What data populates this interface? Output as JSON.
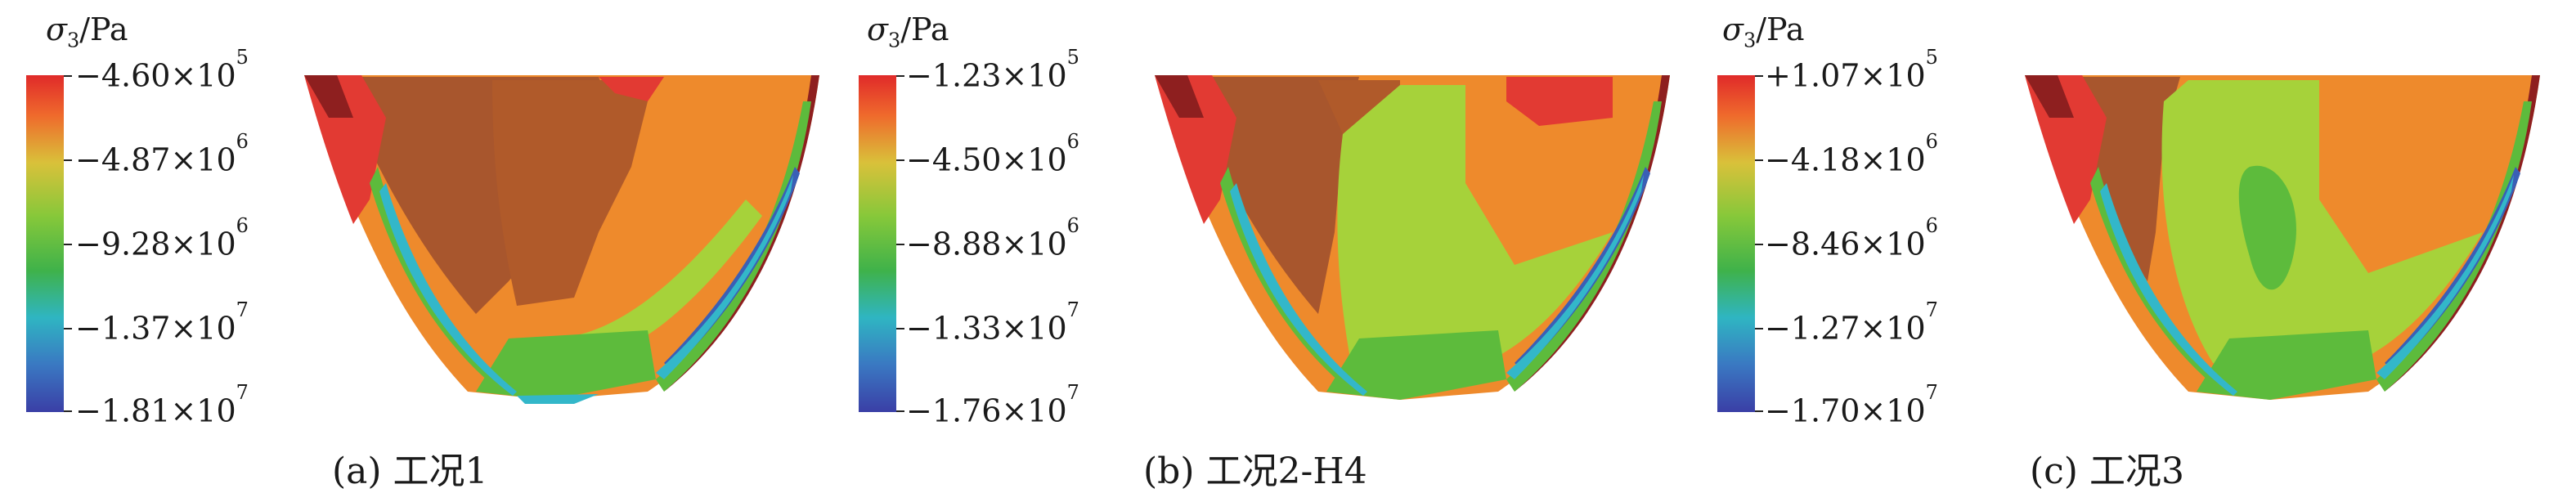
{
  "colors": {
    "red": "#e23a33",
    "orange": "#ee8a2c",
    "brown": "#a8562d",
    "darkred": "#8e1f1f",
    "lime": "#a6d23a",
    "green": "#5dbb3c",
    "cyan": "#33b7c9",
    "blue": "#3a5fb6"
  },
  "panels": [
    {
      "legend_title": "σ",
      "legend_sub": "3",
      "legend_unit": "/Pa",
      "ticks": [
        {
          "mant": "−4.60×10",
          "exp": "5"
        },
        {
          "mant": "−4.87×10",
          "exp": "6"
        },
        {
          "mant": "−9.28×10",
          "exp": "6"
        },
        {
          "mant": "−1.37×10",
          "exp": "7"
        },
        {
          "mant": "−1.81×10",
          "exp": "7"
        }
      ],
      "caption": "(a) 工况1"
    },
    {
      "legend_title": "σ",
      "legend_sub": "3",
      "legend_unit": "/Pa",
      "ticks": [
        {
          "mant": "−1.23×10",
          "exp": "5"
        },
        {
          "mant": "−4.50×10",
          "exp": "6"
        },
        {
          "mant": "−8.88×10",
          "exp": "6"
        },
        {
          "mant": "−1.33×10",
          "exp": "7"
        },
        {
          "mant": "−1.76×10",
          "exp": "7"
        }
      ],
      "caption": "(b) 工况2-H4"
    },
    {
      "legend_title": "σ",
      "legend_sub": "3",
      "legend_unit": "/Pa",
      "ticks": [
        {
          "mant": "+1.07×10",
          "exp": "5"
        },
        {
          "mant": "−4.18×10",
          "exp": "6"
        },
        {
          "mant": "−8.46×10",
          "exp": "6"
        },
        {
          "mant": "−1.27×10",
          "exp": "7"
        },
        {
          "mant": "−1.70×10",
          "exp": "7"
        }
      ],
      "caption": "(c) 工况3"
    }
  ]
}
